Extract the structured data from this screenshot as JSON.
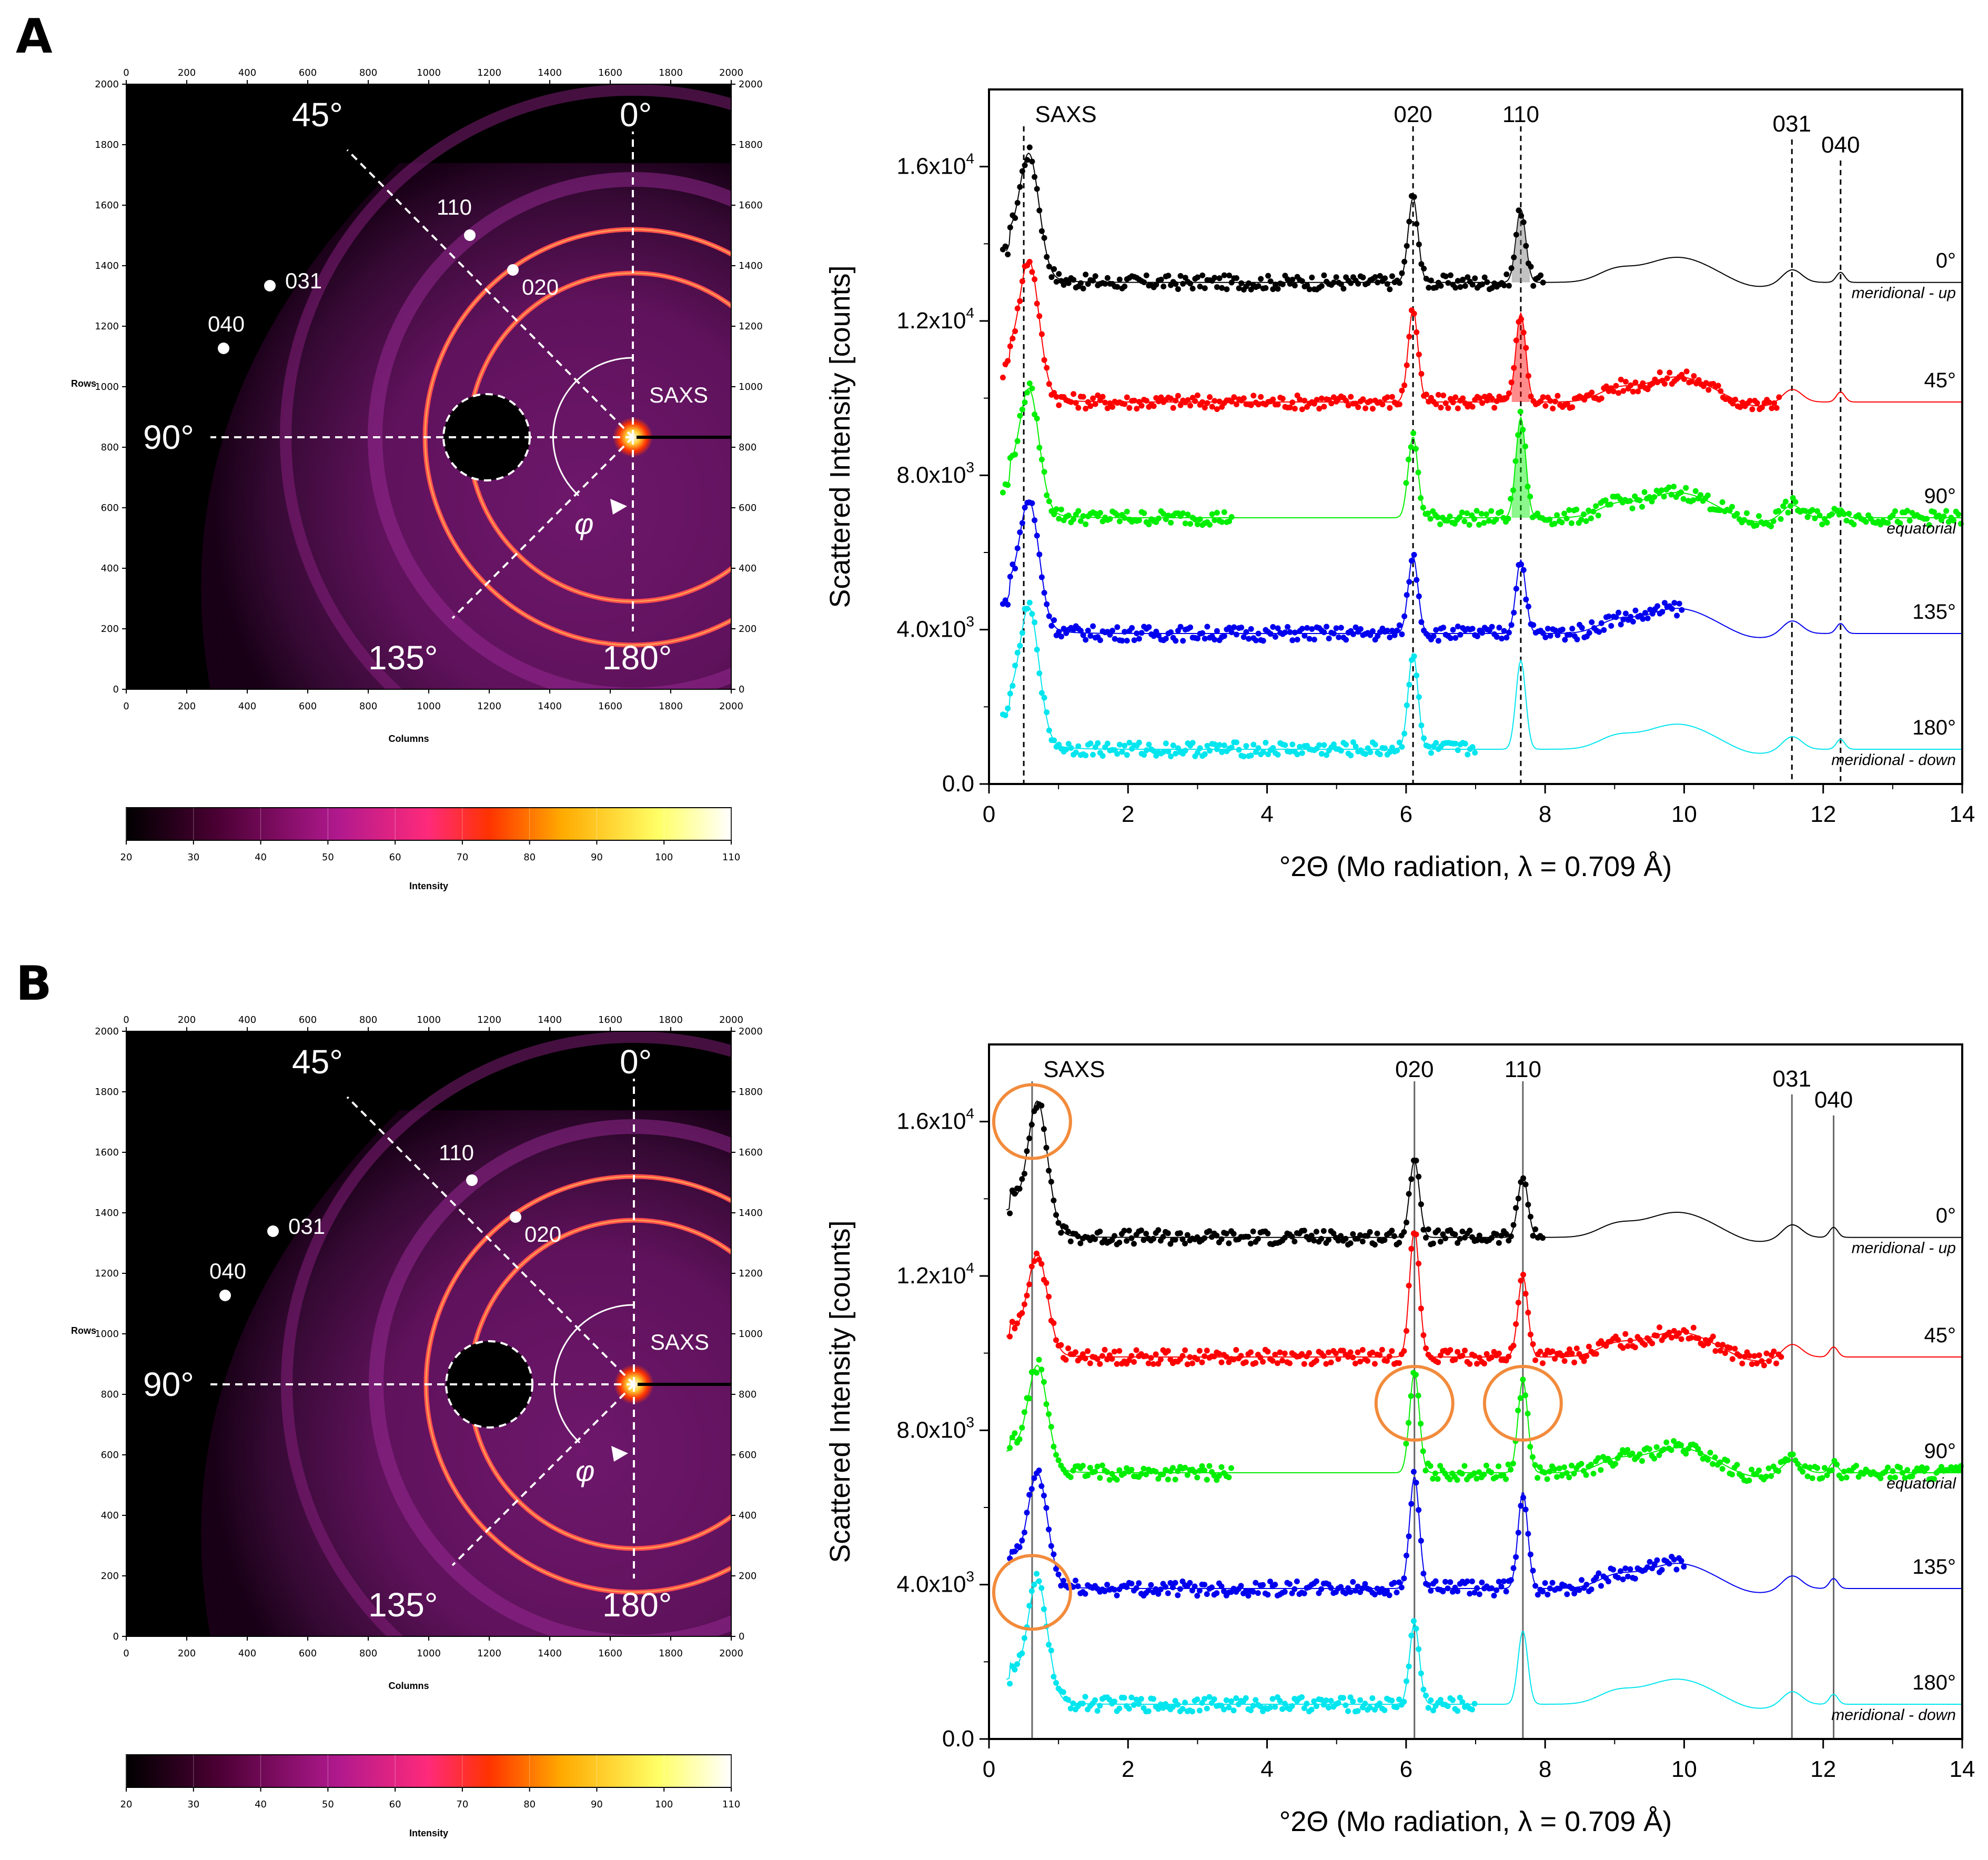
{
  "panels": [
    {
      "label": "A",
      "detector": {
        "column_ticks": [
          "0",
          "200",
          "400",
          "600",
          "800",
          "1000",
          "1200",
          "1400",
          "1600",
          "1800",
          "2000"
        ],
        "row_ticks": [
          "0",
          "200",
          "400",
          "600",
          "800",
          "1000",
          "1200",
          "1400",
          "1600",
          "1800",
          "2000"
        ],
        "xlabel": "Columns",
        "ylabel": "Rows",
        "angles": [
          "45°",
          "0°",
          "90°",
          "135°",
          "180°"
        ],
        "phi": "φ",
        "ring_labels": [
          "110",
          "020",
          "031",
          "040"
        ],
        "saxs_label": "SAXS",
        "colorbar": {
          "ticks": [
            "20",
            "30",
            "40",
            "50",
            "60",
            "70",
            "80",
            "90",
            "100",
            "110"
          ],
          "label": "Intensity"
        }
      },
      "chart_data": {
        "type": "line",
        "xlabel": "°2Θ (Mo radiation, λ = 0.709 Å)",
        "ylabel": "Scattered Intensity [counts]",
        "xlim": [
          0,
          14
        ],
        "ylim": [
          0,
          18000
        ],
        "xticks": [
          "0",
          "2",
          "4",
          "6",
          "8",
          "10",
          "12",
          "14"
        ],
        "yticks": [
          {
            "v": 0,
            "base": "0.0",
            "exp": ""
          },
          {
            "v": 4000,
            "base": "4.0x10",
            "exp": "3"
          },
          {
            "v": 8000,
            "base": "8.0x10",
            "exp": "3"
          },
          {
            "v": 12000,
            "base": "1.2x10",
            "exp": "4"
          },
          {
            "v": 16000,
            "base": "1.6x10",
            "exp": "4"
          }
        ],
        "reference_lines": [
          {
            "label": "SAXS",
            "x": 0.5
          },
          {
            "label": "020",
            "x": 6.1
          },
          {
            "label": "110",
            "x": 7.65
          },
          {
            "label": "031",
            "x": 11.55
          },
          {
            "label": "040",
            "x": 12.25
          }
        ],
        "reference_style": "dashed",
        "series": [
          {
            "name": "0°",
            "note": "meridional - up",
            "color": "#000000",
            "baseline": 13000,
            "saxs": 3000,
            "p020": 2200,
            "p110": 1900,
            "pdot": [
              0.2,
              8.0
            ],
            "shade": true
          },
          {
            "name": "45°",
            "note": "",
            "color": "#ff0000",
            "baseline": 9900,
            "saxs": 3300,
            "p020": 2400,
            "p110": 2300,
            "pdot": [
              0.2,
              11.4
            ],
            "shade": true
          },
          {
            "name": "90°",
            "note": "equatorial",
            "color": "#00ee00",
            "baseline": 6900,
            "saxs": 3000,
            "p020": 2100,
            "p110": 2600,
            "pdot": [
              0.2,
              3.5
            ],
            "pdot2": [
              6.0,
              14.0
            ],
            "shade": true
          },
          {
            "name": "135°",
            "note": "",
            "color": "#0000ee",
            "baseline": 3900,
            "saxs": 3100,
            "p020": 2000,
            "p110": 1900,
            "pdot": [
              0.2,
              10.0
            ],
            "shade": false
          },
          {
            "name": "180°",
            "note": "meridional - down",
            "color": "#00e5ee",
            "baseline": 900,
            "saxs": 3300,
            "p020": 2500,
            "p110": 2300,
            "pdot": [
              0.2,
              7.0
            ],
            "shade": false
          }
        ]
      }
    },
    {
      "label": "B",
      "detector": {
        "column_ticks": [
          "0",
          "200",
          "400",
          "600",
          "800",
          "1000",
          "1200",
          "1400",
          "1600",
          "1800",
          "2000"
        ],
        "row_ticks": [
          "0",
          "200",
          "400",
          "600",
          "800",
          "1000",
          "1200",
          "1400",
          "1600",
          "1800",
          "2000"
        ],
        "xlabel": "Columns",
        "ylabel": "Rows",
        "angles": [
          "45°",
          "0°",
          "90°",
          "135°",
          "180°"
        ],
        "phi": "φ",
        "ring_labels": [
          "110",
          "020",
          "031",
          "040"
        ],
        "saxs_label": "SAXS",
        "colorbar": {
          "ticks": [
            "20",
            "30",
            "40",
            "50",
            "60",
            "70",
            "80",
            "90",
            "100",
            "110"
          ],
          "label": "Intensity"
        }
      },
      "chart_data": {
        "type": "line",
        "xlabel": "°2Θ (Mo radiation, λ = 0.709 Å)",
        "ylabel": "Scattered Intensity [counts]",
        "xlim": [
          0,
          14
        ],
        "ylim": [
          0,
          18000
        ],
        "xticks": [
          "0",
          "2",
          "4",
          "6",
          "8",
          "10",
          "12",
          "14"
        ],
        "yticks": [
          {
            "v": 0,
            "base": "0.0",
            "exp": ""
          },
          {
            "v": 4000,
            "base": "4.0x10",
            "exp": "3"
          },
          {
            "v": 8000,
            "base": "8.0x10",
            "exp": "3"
          },
          {
            "v": 12000,
            "base": "1.2x10",
            "exp": "4"
          },
          {
            "v": 16000,
            "base": "1.6x10",
            "exp": "4"
          }
        ],
        "reference_lines": [
          {
            "label": "SAXS",
            "x": 0.62
          },
          {
            "label": "020",
            "x": 6.12
          },
          {
            "label": "110",
            "x": 7.68
          },
          {
            "label": "031",
            "x": 11.55
          },
          {
            "label": "040",
            "x": 12.15
          }
        ],
        "reference_style": "solid",
        "circles": [
          {
            "x": 0.62,
            "y": 16000
          },
          {
            "x": 0.62,
            "y": 3800
          },
          {
            "x": 6.12,
            "y": 8700
          },
          {
            "x": 7.68,
            "y": 8700
          }
        ],
        "series": [
          {
            "name": "0°",
            "note": "meridional - up",
            "color": "#000000",
            "baseline": 13000,
            "saxs": 3300,
            "p020": 2000,
            "p110": 1600,
            "pdot": [
              0.3,
              8.0
            ],
            "shade": false
          },
          {
            "name": "45°",
            "note": "",
            "color": "#ff0000",
            "baseline": 9900,
            "saxs": 2500,
            "p020": 3300,
            "p110": 2100,
            "pdot": [
              0.3,
              11.4
            ],
            "shade": false
          },
          {
            "name": "90°",
            "note": "equatorial",
            "color": "#00ee00",
            "baseline": 6900,
            "saxs": 2600,
            "p020": 2600,
            "p110": 2400,
            "pdot": [
              0.3,
              3.5
            ],
            "pdot2": [
              6.0,
              14.0
            ],
            "shade": false
          },
          {
            "name": "135°",
            "note": "",
            "color": "#0000ee",
            "baseline": 3900,
            "saxs": 2800,
            "p020": 2900,
            "p110": 2500,
            "pdot": [
              0.3,
              10.0
            ],
            "shade": false
          },
          {
            "name": "180°",
            "note": "meridional - down",
            "color": "#00e5ee",
            "baseline": 900,
            "saxs": 3000,
            "p020": 2100,
            "p110": 1900,
            "pdot": [
              0.3,
              7.0
            ],
            "shade": false
          }
        ]
      }
    }
  ],
  "colors": {
    "colormap": [
      "#000000",
      "#4a0033",
      "#b0198e",
      "#ff2a7a",
      "#ff3300",
      "#ffaa00",
      "#ffff66",
      "#ffffff"
    ],
    "ring": "#ff4d4d",
    "highlight_circle": "#f28b3c"
  }
}
